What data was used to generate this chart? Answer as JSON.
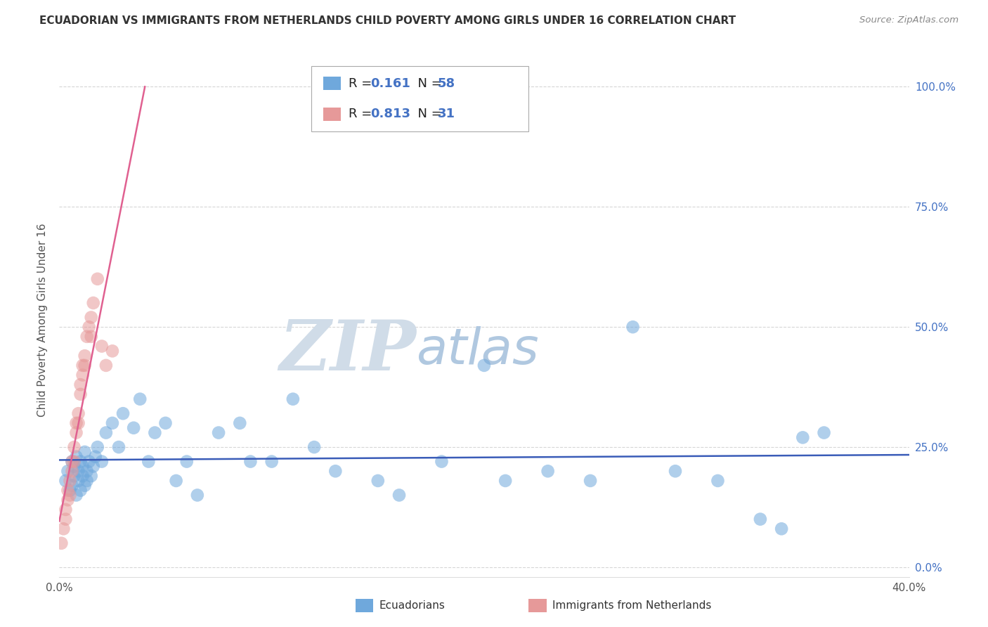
{
  "title": "ECUADORIAN VS IMMIGRANTS FROM NETHERLANDS CHILD POVERTY AMONG GIRLS UNDER 16 CORRELATION CHART",
  "source": "Source: ZipAtlas.com",
  "ylabel": "Child Poverty Among Girls Under 16",
  "xlim": [
    0.0,
    0.4
  ],
  "ylim": [
    -0.02,
    1.05
  ],
  "yticks": [
    0.0,
    0.25,
    0.5,
    0.75,
    1.0
  ],
  "ytick_labels": [
    "0.0%",
    "25.0%",
    "50.0%",
    "75.0%",
    "100.0%"
  ],
  "xticks": [
    0.0,
    0.1,
    0.2,
    0.3,
    0.4
  ],
  "xtick_labels": [
    "0.0%",
    "",
    "",
    "",
    "40.0%"
  ],
  "ecuadorian_R": 0.161,
  "ecuadorian_N": 58,
  "netherlands_R": 0.813,
  "netherlands_N": 31,
  "ecuadorian_color": "#6fa8dc",
  "netherlands_color": "#e69999",
  "regression_ecuadorian_color": "#3a5cb8",
  "regression_netherlands_color": "#e06090",
  "watermark_zip": "ZIP",
  "watermark_atlas": "atlas",
  "watermark_color_zip": "#d0dce8",
  "watermark_color_atlas": "#b0c8e0",
  "background_color": "#ffffff",
  "grid_color": "#cccccc",
  "ecuadorian_x": [
    0.003,
    0.004,
    0.005,
    0.006,
    0.006,
    0.007,
    0.007,
    0.008,
    0.008,
    0.009,
    0.009,
    0.01,
    0.01,
    0.011,
    0.011,
    0.012,
    0.012,
    0.013,
    0.013,
    0.014,
    0.015,
    0.016,
    0.017,
    0.018,
    0.02,
    0.022,
    0.025,
    0.028,
    0.03,
    0.035,
    0.038,
    0.042,
    0.045,
    0.05,
    0.055,
    0.06,
    0.065,
    0.075,
    0.085,
    0.09,
    0.1,
    0.11,
    0.12,
    0.13,
    0.15,
    0.16,
    0.18,
    0.2,
    0.21,
    0.23,
    0.25,
    0.27,
    0.29,
    0.31,
    0.33,
    0.34,
    0.35,
    0.36
  ],
  "ecuadorian_y": [
    0.18,
    0.2,
    0.16,
    0.22,
    0.17,
    0.19,
    0.21,
    0.23,
    0.15,
    0.2,
    0.18,
    0.22,
    0.16,
    0.19,
    0.21,
    0.24,
    0.17,
    0.2,
    0.18,
    0.22,
    0.19,
    0.21,
    0.23,
    0.25,
    0.22,
    0.28,
    0.3,
    0.25,
    0.32,
    0.29,
    0.35,
    0.22,
    0.28,
    0.3,
    0.18,
    0.22,
    0.15,
    0.28,
    0.3,
    0.22,
    0.22,
    0.35,
    0.25,
    0.2,
    0.18,
    0.15,
    0.22,
    0.42,
    0.18,
    0.2,
    0.18,
    0.5,
    0.2,
    0.18,
    0.1,
    0.08,
    0.27,
    0.28
  ],
  "netherlands_x": [
    0.001,
    0.002,
    0.003,
    0.003,
    0.004,
    0.004,
    0.005,
    0.005,
    0.006,
    0.006,
    0.007,
    0.007,
    0.008,
    0.008,
    0.009,
    0.009,
    0.01,
    0.01,
    0.011,
    0.011,
    0.012,
    0.012,
    0.013,
    0.014,
    0.015,
    0.015,
    0.016,
    0.018,
    0.02,
    0.022,
    0.025
  ],
  "netherlands_y": [
    0.05,
    0.08,
    0.1,
    0.12,
    0.14,
    0.16,
    0.15,
    0.18,
    0.22,
    0.2,
    0.25,
    0.22,
    0.3,
    0.28,
    0.32,
    0.3,
    0.38,
    0.36,
    0.42,
    0.4,
    0.44,
    0.42,
    0.48,
    0.5,
    0.52,
    0.48,
    0.55,
    0.6,
    0.46,
    0.42,
    0.45
  ]
}
